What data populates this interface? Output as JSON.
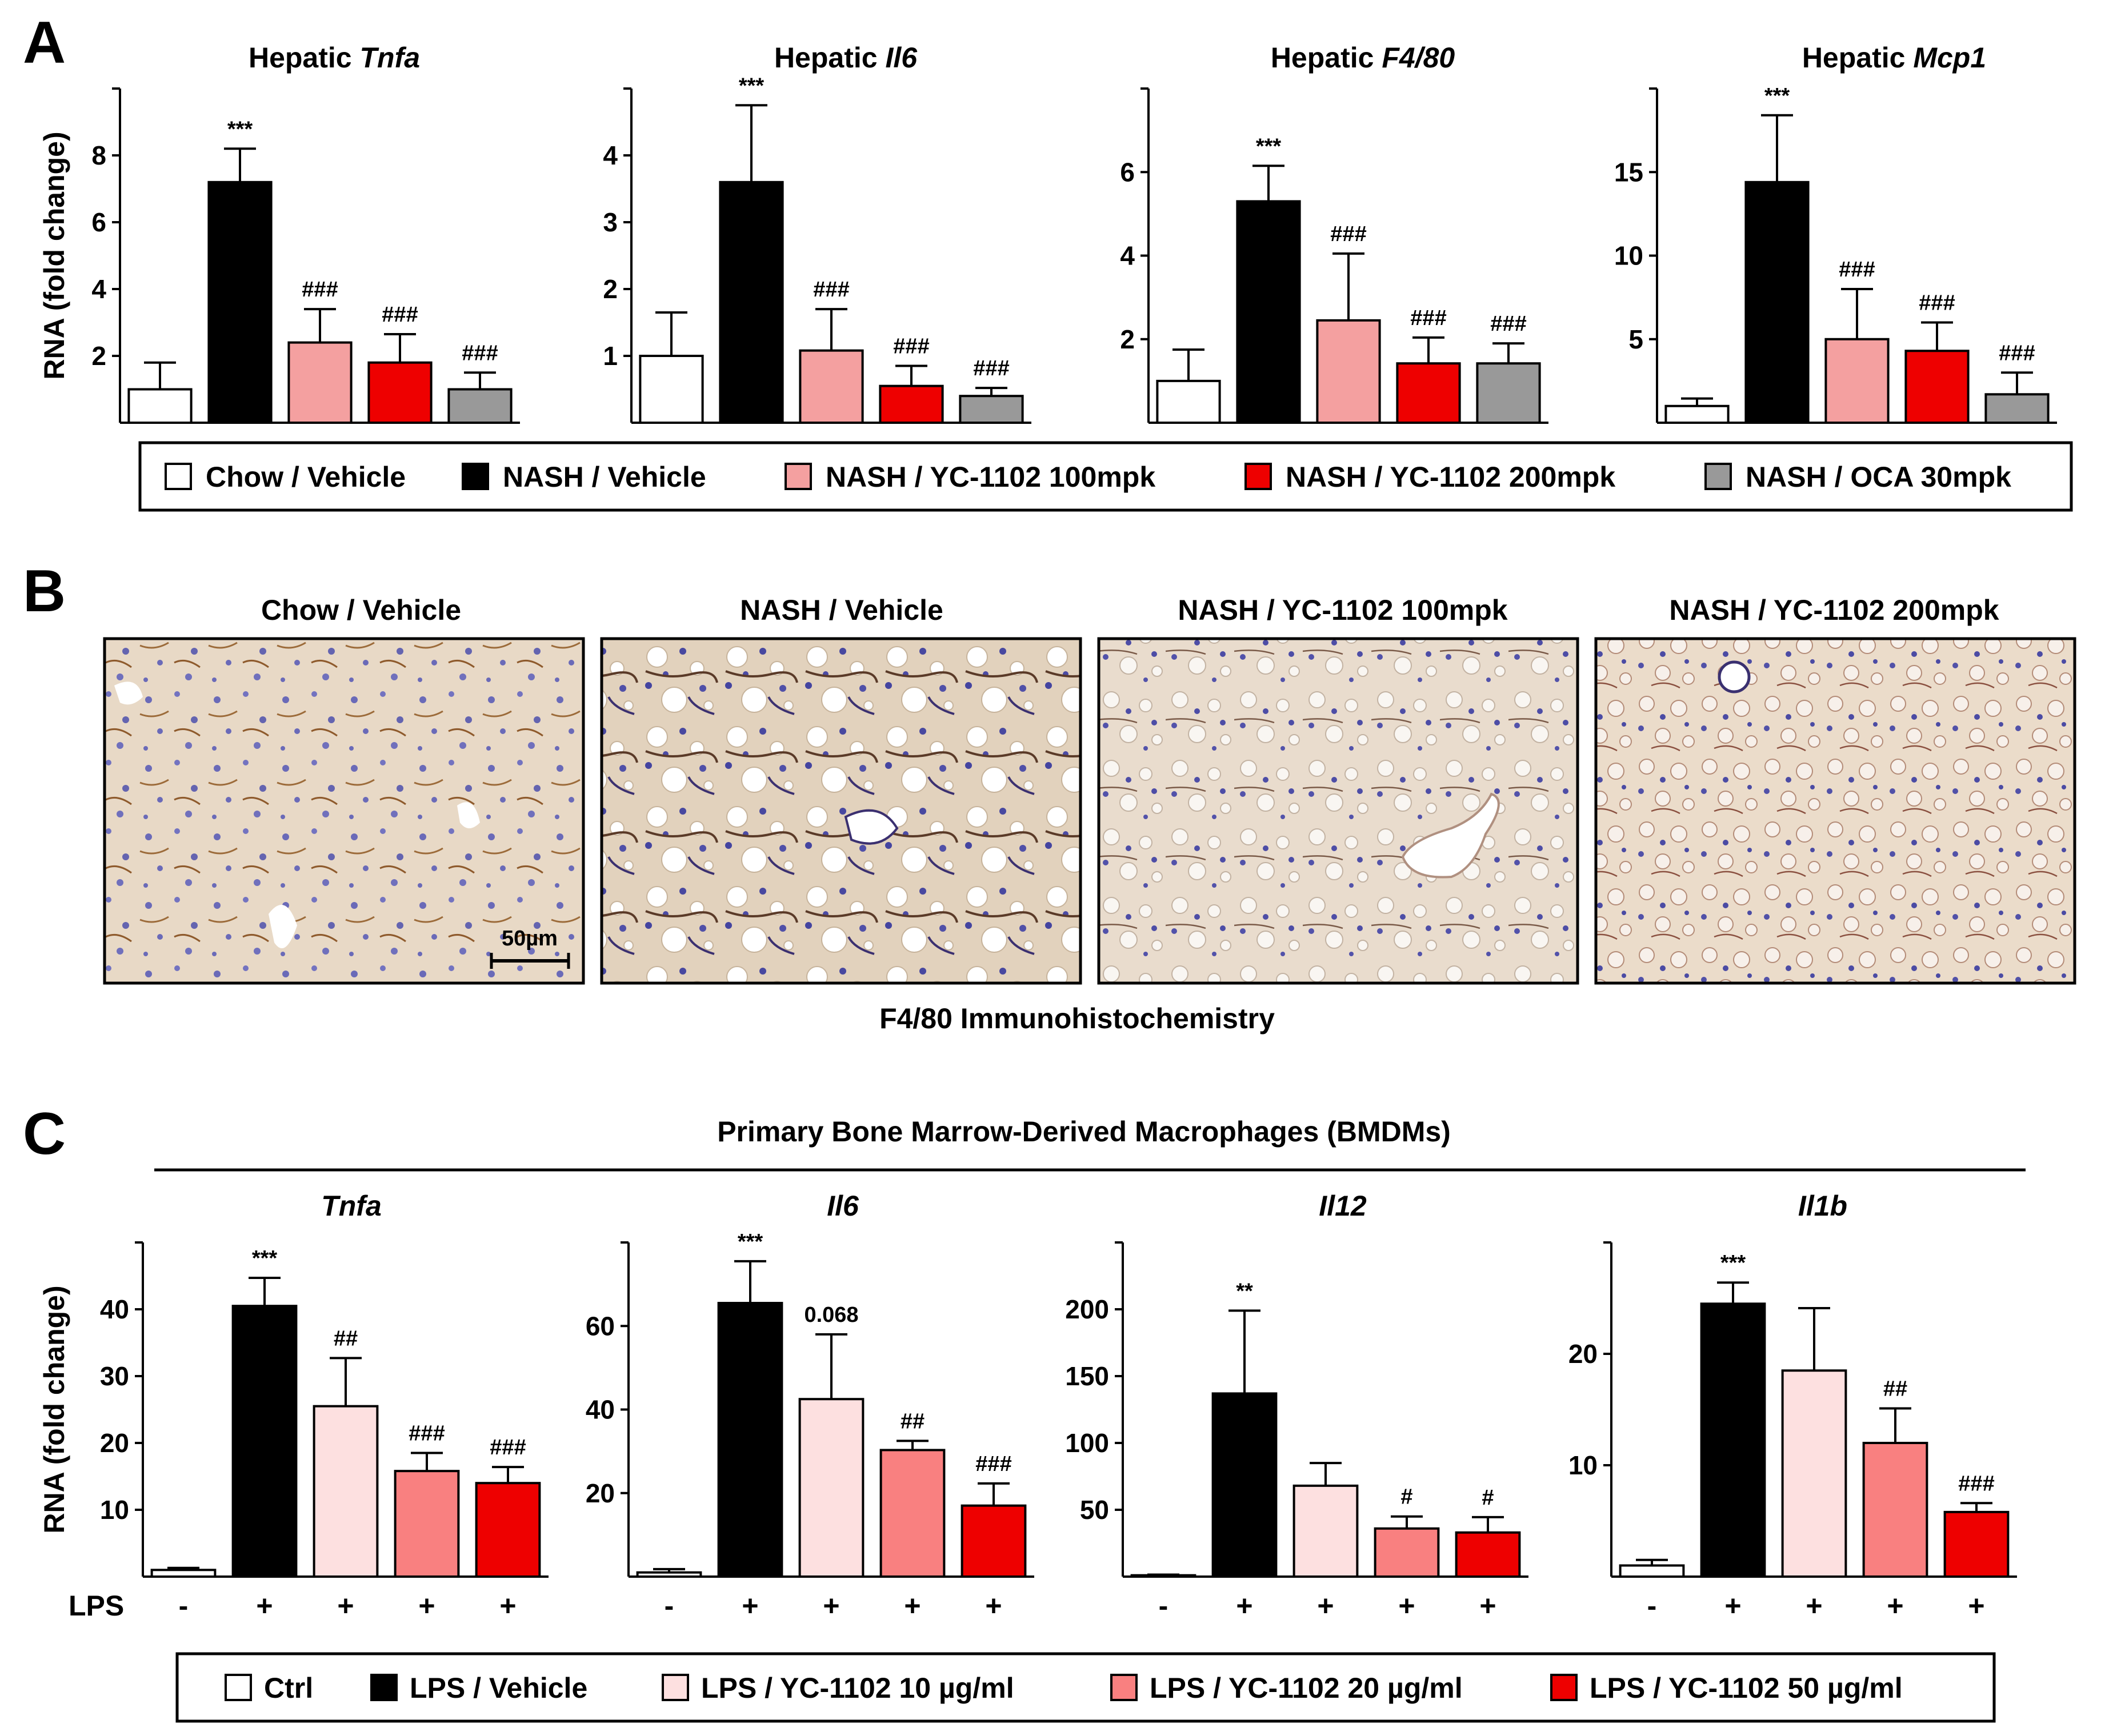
{
  "panels": {
    "a": {
      "letter": "A"
    },
    "b": {
      "letter": "B",
      "images": [
        {
          "title": "Chow / Vehicle",
          "scale_bar": "50µm"
        },
        {
          "title": "NASH / Vehicle"
        },
        {
          "title": "NASH / YC-1102 100mpk"
        },
        {
          "title": "NASH / YC-1102 200mpk"
        }
      ],
      "caption": "F4/80 Immunohistochemistry"
    },
    "c": {
      "letter": "C",
      "header": "Primary Bone Marrow-Derived Macrophages (BMDMs)",
      "lps_label": "LPS",
      "lps_signs": [
        "-",
        "+",
        "+",
        "+",
        "+"
      ]
    }
  },
  "legend_a": [
    {
      "label": "Chow / Vehicle",
      "color": "#ffffff"
    },
    {
      "label": "NASH / Vehicle",
      "color": "#000000"
    },
    {
      "label": "NASH / YC-1102 100mpk",
      "color": "#f4a0a0"
    },
    {
      "label": "NASH / YC-1102 200mpk",
      "color": "#ee0000"
    },
    {
      "label": "NASH / OCA 30mpk",
      "color": "#999999"
    }
  ],
  "legend_c": [
    {
      "label": "Ctrl",
      "color": "#ffffff"
    },
    {
      "label": "LPS / Vehicle",
      "color": "#000000"
    },
    {
      "label": "LPS / YC-1102  10 µg/ml",
      "color": "#fde0e0"
    },
    {
      "label": "LPS / YC-1102 20 µg/ml",
      "color": "#f98080"
    },
    {
      "label": "LPS / YC-1102 50 µg/ml",
      "color": "#ee0000"
    }
  ],
  "chart_data": [
    {
      "type": "bar",
      "panel": "A",
      "title_prefix": "Hepatic ",
      "title_gene": "Tnfa",
      "ylabel": "RNA (fold change)",
      "ylim": [
        0,
        10
      ],
      "yticks": [
        2,
        4,
        6,
        8
      ],
      "colors": [
        "#ffffff",
        "#000000",
        "#f4a0a0",
        "#ee0000",
        "#999999"
      ],
      "values": [
        1.0,
        7.2,
        2.4,
        1.8,
        1.0
      ],
      "errors": [
        0.8,
        1.0,
        1.0,
        0.85,
        0.5
      ],
      "annotations": [
        "",
        "***",
        "###",
        "###",
        "###"
      ]
    },
    {
      "type": "bar",
      "panel": "A",
      "title_prefix": "Hepatic ",
      "title_gene": "Il6",
      "ylabel": "",
      "ylim": [
        0,
        5
      ],
      "yticks": [
        1,
        2,
        3,
        4
      ],
      "colors": [
        "#ffffff",
        "#000000",
        "#f4a0a0",
        "#ee0000",
        "#999999"
      ],
      "values": [
        1.0,
        3.6,
        1.08,
        0.55,
        0.4
      ],
      "errors": [
        0.65,
        1.15,
        0.62,
        0.3,
        0.12
      ],
      "annotations": [
        "",
        "***",
        "###",
        "###",
        "###"
      ]
    },
    {
      "type": "bar",
      "panel": "A",
      "title_prefix": "Hepatic ",
      "title_gene": "F4/80",
      "ylabel": "",
      "ylim": [
        0,
        8
      ],
      "yticks": [
        2,
        4,
        6
      ],
      "colors": [
        "#ffffff",
        "#000000",
        "#f4a0a0",
        "#ee0000",
        "#999999"
      ],
      "values": [
        1.0,
        5.3,
        2.45,
        1.42,
        1.42
      ],
      "errors": [
        0.75,
        0.85,
        1.6,
        0.62,
        0.48
      ],
      "annotations": [
        "",
        "***",
        "###",
        "###",
        "###"
      ]
    },
    {
      "type": "bar",
      "panel": "A",
      "title_prefix": "Hepatic ",
      "title_gene": "Mcp1",
      "ylabel": "",
      "ylim": [
        0,
        20
      ],
      "yticks": [
        5,
        10,
        15
      ],
      "colors": [
        "#ffffff",
        "#000000",
        "#f4a0a0",
        "#ee0000",
        "#999999"
      ],
      "values": [
        1.0,
        14.4,
        5.0,
        4.3,
        1.7
      ],
      "errors": [
        0.45,
        4.0,
        3.0,
        1.7,
        1.3
      ],
      "annotations": [
        "",
        "***",
        "###",
        "###",
        "###"
      ]
    },
    {
      "type": "bar",
      "panel": "C",
      "title_prefix": "",
      "title_gene": "Tnfa",
      "ylabel": "RNA (fold change)",
      "ylim": [
        0,
        50
      ],
      "yticks": [
        10,
        20,
        30,
        40
      ],
      "colors": [
        "#ffffff",
        "#000000",
        "#fde0e0",
        "#f98080",
        "#ee0000"
      ],
      "values": [
        1.0,
        40.5,
        25.5,
        15.8,
        14.0
      ],
      "errors": [
        0.3,
        4.2,
        7.2,
        2.7,
        2.4
      ],
      "annotations": [
        "",
        "***",
        "##",
        "###",
        "###"
      ]
    },
    {
      "type": "bar",
      "panel": "C",
      "title_prefix": "",
      "title_gene": "Il6",
      "ylabel": "",
      "ylim": [
        0,
        80
      ],
      "yticks": [
        20,
        40,
        60
      ],
      "colors": [
        "#ffffff",
        "#000000",
        "#fde0e0",
        "#f98080",
        "#ee0000"
      ],
      "values": [
        1.0,
        65.5,
        42.5,
        30.3,
        17.0
      ],
      "errors": [
        0.8,
        10.0,
        15.5,
        2.2,
        5.3
      ],
      "annotations": [
        "",
        "***",
        "0.068",
        "##",
        "###"
      ]
    },
    {
      "type": "bar",
      "panel": "C",
      "title_prefix": "",
      "title_gene": "Il12",
      "ylabel": "",
      "ylim": [
        0,
        250
      ],
      "yticks": [
        50,
        100,
        150,
        200
      ],
      "colors": [
        "#ffffff",
        "#000000",
        "#fde0e0",
        "#f98080",
        "#ee0000"
      ],
      "values": [
        1.0,
        137.0,
        68.0,
        36.0,
        33.0
      ],
      "errors": [
        0.5,
        62.0,
        17.0,
        9.0,
        11.5
      ],
      "annotations": [
        "",
        "**",
        "",
        "#",
        "#"
      ]
    },
    {
      "type": "bar",
      "panel": "C",
      "title_prefix": "",
      "title_gene": "Il1b",
      "ylabel": "",
      "ylim": [
        0,
        30
      ],
      "yticks": [
        10,
        20
      ],
      "colors": [
        "#ffffff",
        "#000000",
        "#fde0e0",
        "#f98080",
        "#ee0000"
      ],
      "values": [
        1.0,
        24.5,
        18.5,
        12.0,
        5.8
      ],
      "errors": [
        0.5,
        1.9,
        5.6,
        3.1,
        0.8
      ],
      "annotations": [
        "",
        "***",
        "",
        "##",
        "###"
      ]
    }
  ]
}
